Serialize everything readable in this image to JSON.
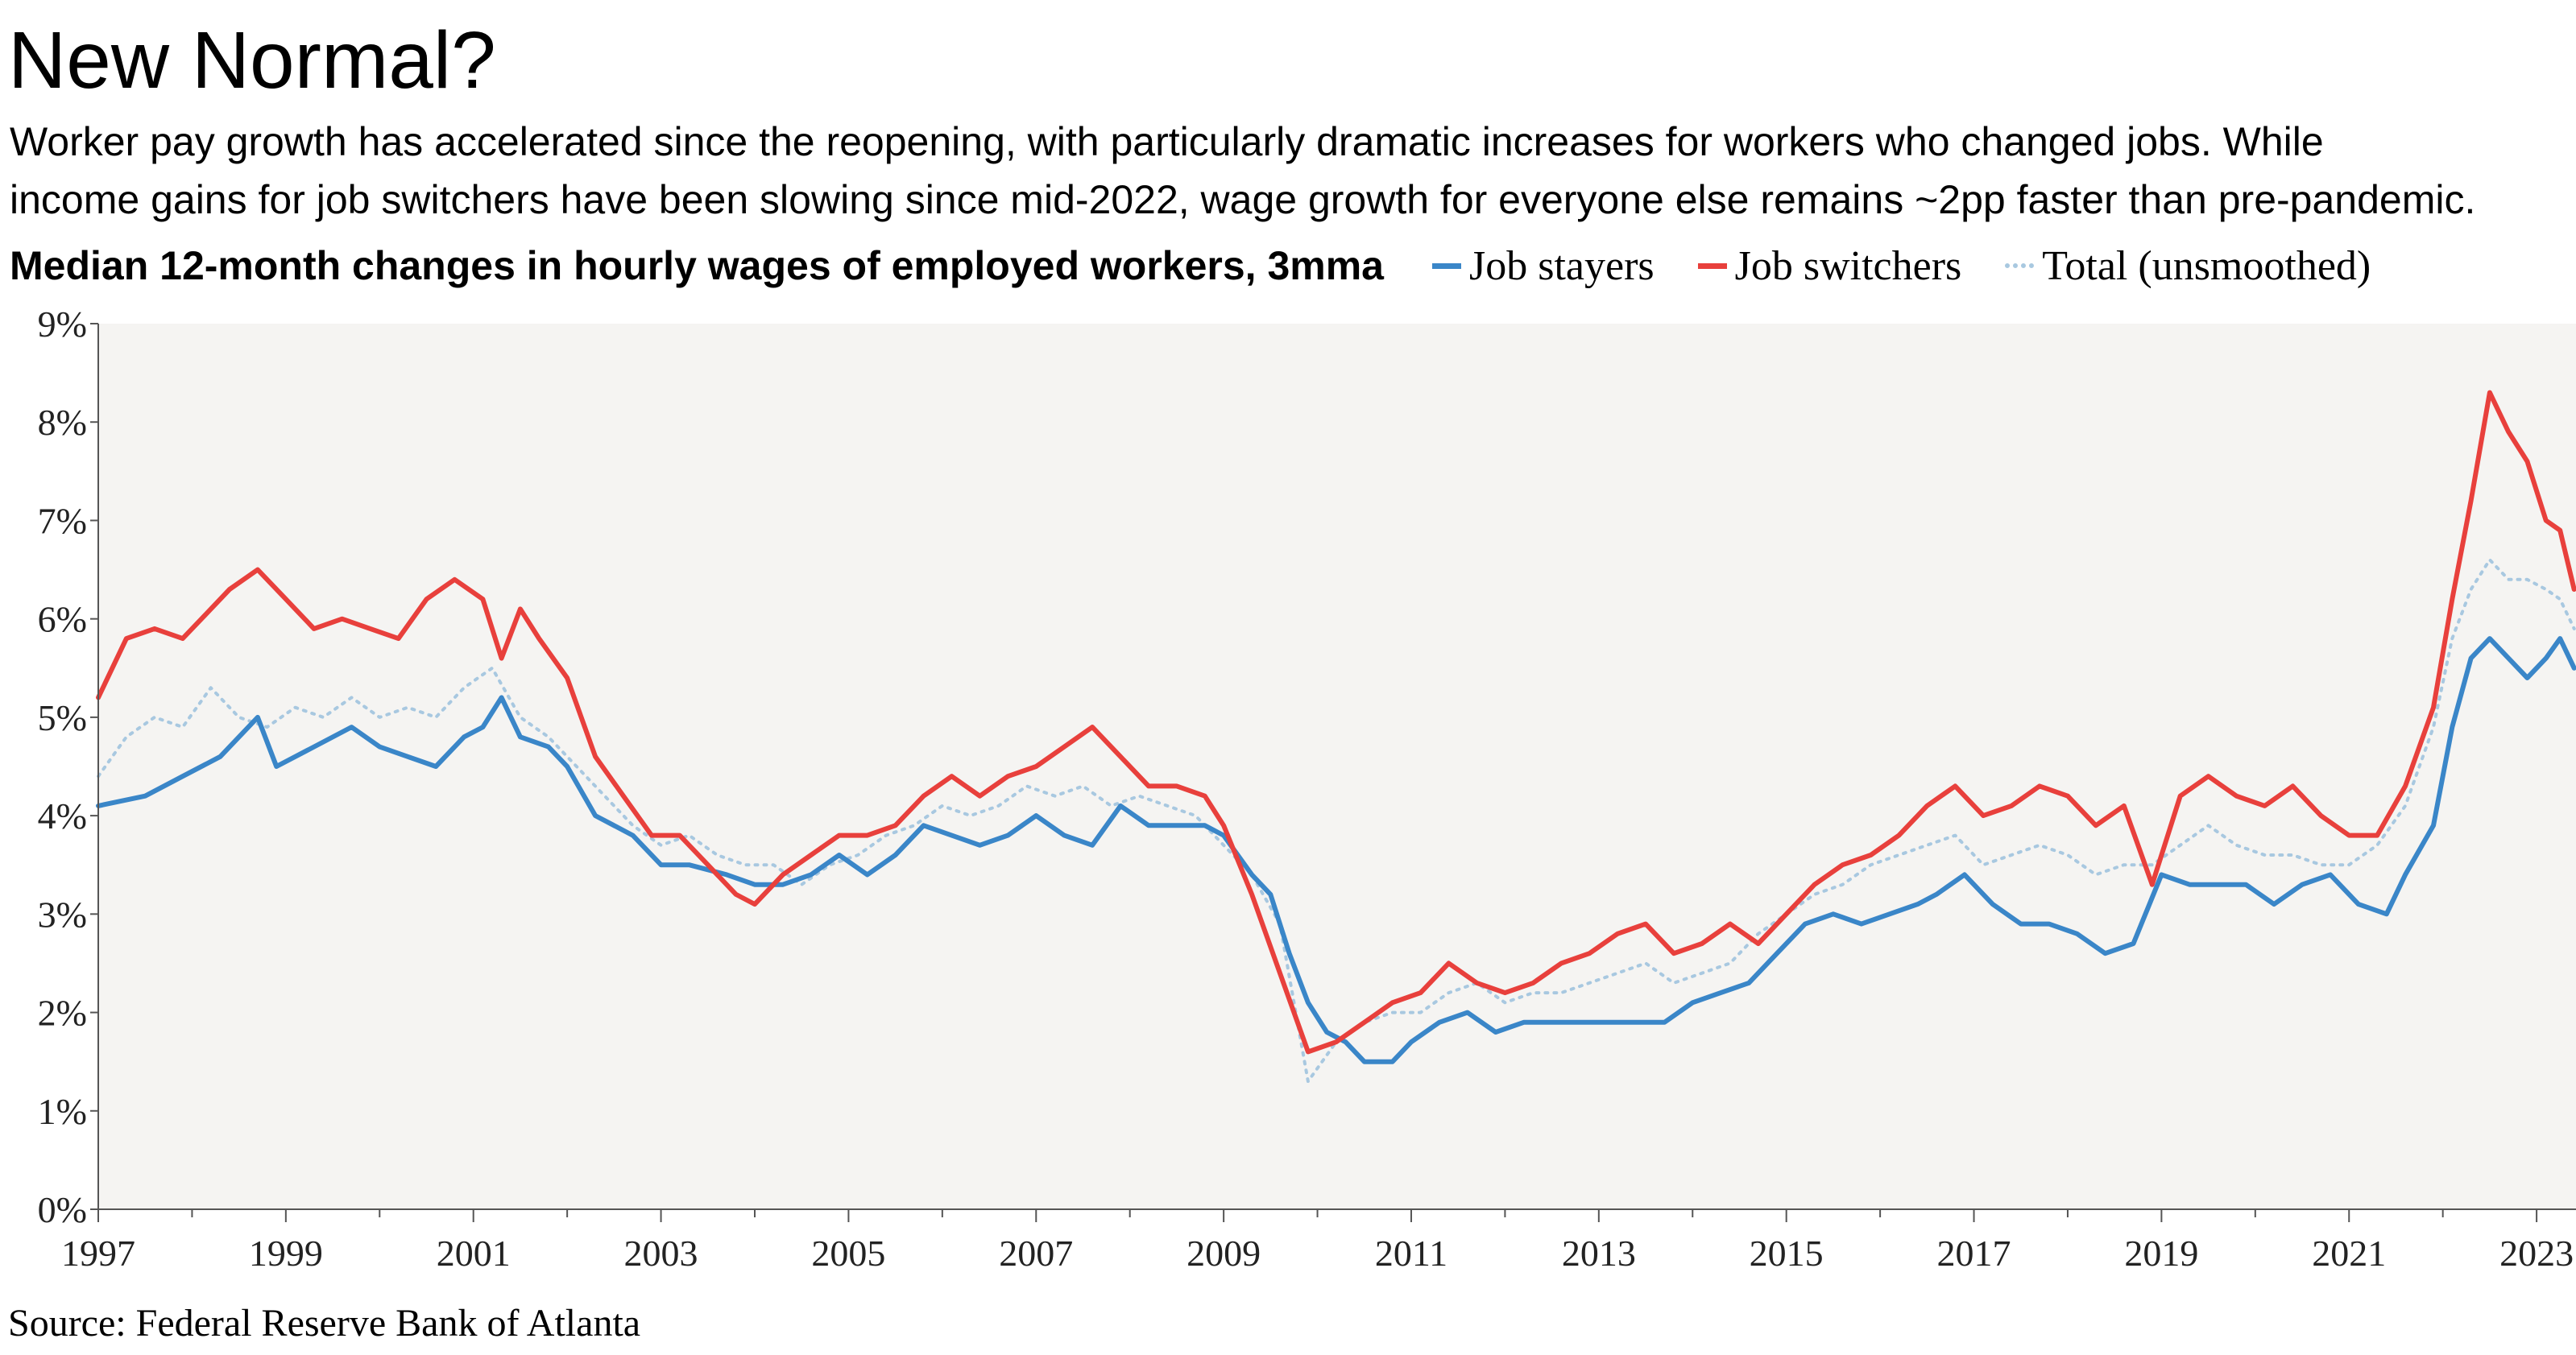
{
  "header": {
    "title": "New Normal?",
    "subtitle_lines": [
      "Worker pay growth has accelerated since the reopening, with particularly dramatic increases for workers who changed jobs. While",
      "income gains for job switchers have been slowing since mid-2022, wage growth for everyone else remains ~2pp faster than pre-pandemic."
    ],
    "measure_label": "Median 12-month changes in hourly wages of employed workers, 3mma"
  },
  "source": "Source: Federal Reserve Bank of Atlanta",
  "colors": {
    "job_stayers": "#3a86c8",
    "job_switchers": "#e8403c",
    "total": "#a8c8e0",
    "plot_background": "#f5f4f2",
    "axis": "#555555"
  },
  "chart_data": {
    "type": "line",
    "title": "New Normal?",
    "xlabel": "",
    "ylabel": "",
    "ylim": [
      0,
      9
    ],
    "xlim": [
      1997,
      2023.42
    ],
    "y_unit": "%",
    "y_ticks": [
      0,
      1,
      2,
      3,
      4,
      5,
      6,
      7,
      8,
      9
    ],
    "y_tick_labels": [
      "0%",
      "1%",
      "2%",
      "3%",
      "4%",
      "5%",
      "6%",
      "7%",
      "8%",
      "9%"
    ],
    "x_ticks": [
      1997,
      1999,
      2001,
      2003,
      2005,
      2007,
      2009,
      2011,
      2013,
      2015,
      2017,
      2019,
      2021,
      2023
    ],
    "x_tick_labels": [
      "1997",
      "1999",
      "2001",
      "2003",
      "2005",
      "2007",
      "2009",
      "2011",
      "2013",
      "2015",
      "2017",
      "2019",
      "2021",
      "2023"
    ],
    "grid": false,
    "legend_position": "top",
    "series": [
      {
        "name": "Job stayers",
        "style": "solid",
        "x": [
          1997.0,
          1997.5,
          1997.9,
          1998.3,
          1998.7,
          1998.9,
          1999.3,
          1999.7,
          2000.0,
          2000.3,
          2000.6,
          2000.9,
          2001.1,
          2001.3,
          2001.5,
          2001.8,
          2002.0,
          2002.3,
          2002.7,
          2003.0,
          2003.3,
          2003.7,
          2004.0,
          2004.3,
          2004.6,
          2004.9,
          2005.2,
          2005.5,
          2005.8,
          2006.1,
          2006.4,
          2006.7,
          2007.0,
          2007.3,
          2007.6,
          2007.9,
          2008.2,
          2008.5,
          2008.8,
          2009.0,
          2009.3,
          2009.5,
          2009.7,
          2009.9,
          2010.1,
          2010.3,
          2010.5,
          2010.8,
          2011.0,
          2011.3,
          2011.6,
          2011.9,
          2012.2,
          2012.5,
          2012.8,
          2013.1,
          2013.4,
          2013.7,
          2014.0,
          2014.3,
          2014.6,
          2014.9,
          2015.2,
          2015.5,
          2015.8,
          2016.1,
          2016.4,
          2016.6,
          2016.9,
          2017.2,
          2017.5,
          2017.8,
          2018.1,
          2018.4,
          2018.7,
          2019.0,
          2019.3,
          2019.6,
          2019.9,
          2020.2,
          2020.5,
          2020.8,
          2021.1,
          2021.4,
          2021.6,
          2021.9,
          2022.1,
          2022.3,
          2022.5,
          2022.7,
          2022.9,
          2023.1,
          2023.25,
          2023.4
        ],
        "y": [
          4.1,
          4.2,
          4.4,
          4.6,
          5.0,
          4.5,
          4.7,
          4.9,
          4.7,
          4.6,
          4.5,
          4.8,
          4.9,
          5.2,
          4.8,
          4.7,
          4.5,
          4.0,
          3.8,
          3.5,
          3.5,
          3.4,
          3.3,
          3.3,
          3.4,
          3.6,
          3.4,
          3.6,
          3.9,
          3.8,
          3.7,
          3.8,
          4.0,
          3.8,
          3.7,
          4.1,
          3.9,
          3.9,
          3.9,
          3.8,
          3.4,
          3.2,
          2.6,
          2.1,
          1.8,
          1.7,
          1.5,
          1.5,
          1.7,
          1.9,
          2.0,
          1.8,
          1.9,
          1.9,
          1.9,
          1.9,
          1.9,
          1.9,
          2.1,
          2.2,
          2.3,
          2.6,
          2.9,
          3.0,
          2.9,
          3.0,
          3.1,
          3.2,
          3.4,
          3.1,
          2.9,
          2.9,
          2.8,
          2.6,
          2.7,
          3.4,
          3.3,
          3.3,
          3.3,
          3.1,
          3.3,
          3.4,
          3.1,
          3.0,
          3.4,
          3.9,
          4.9,
          5.6,
          5.8,
          5.6,
          5.4,
          5.6,
          5.8,
          5.5
        ]
      },
      {
        "name": "Job switchers",
        "style": "solid",
        "x": [
          1997.0,
          1997.3,
          1997.6,
          1997.9,
          1998.1,
          1998.4,
          1998.7,
          1999.0,
          1999.3,
          1999.6,
          1999.9,
          2000.2,
          2000.5,
          2000.8,
          2001.1,
          2001.3,
          2001.5,
          2001.7,
          2002.0,
          2002.3,
          2002.6,
          2002.9,
          2003.2,
          2003.5,
          2003.8,
          2004.0,
          2004.3,
          2004.6,
          2004.9,
          2005.2,
          2005.5,
          2005.8,
          2006.1,
          2006.4,
          2006.7,
          2007.0,
          2007.3,
          2007.6,
          2007.9,
          2008.2,
          2008.5,
          2008.8,
          2009.0,
          2009.3,
          2009.6,
          2009.9,
          2010.2,
          2010.5,
          2010.8,
          2011.1,
          2011.4,
          2011.7,
          2012.0,
          2012.3,
          2012.6,
          2012.9,
          2013.2,
          2013.5,
          2013.8,
          2014.1,
          2014.4,
          2014.7,
          2015.0,
          2015.3,
          2015.6,
          2015.9,
          2016.2,
          2016.5,
          2016.8,
          2017.1,
          2017.4,
          2017.7,
          2018.0,
          2018.3,
          2018.6,
          2018.9,
          2019.2,
          2019.5,
          2019.8,
          2020.1,
          2020.4,
          2020.7,
          2021.0,
          2021.3,
          2021.6,
          2021.9,
          2022.1,
          2022.3,
          2022.5,
          2022.7,
          2022.9,
          2023.1,
          2023.25,
          2023.4
        ],
        "y": [
          5.2,
          5.8,
          5.9,
          5.8,
          6.0,
          6.3,
          6.5,
          6.2,
          5.9,
          6.0,
          5.9,
          5.8,
          6.2,
          6.4,
          6.2,
          5.6,
          6.1,
          5.8,
          5.4,
          4.6,
          4.2,
          3.8,
          3.8,
          3.5,
          3.2,
          3.1,
          3.4,
          3.6,
          3.8,
          3.8,
          3.9,
          4.2,
          4.4,
          4.2,
          4.4,
          4.5,
          4.7,
          4.9,
          4.6,
          4.3,
          4.3,
          4.2,
          3.9,
          3.2,
          2.4,
          1.6,
          1.7,
          1.9,
          2.1,
          2.2,
          2.5,
          2.3,
          2.2,
          2.3,
          2.5,
          2.6,
          2.8,
          2.9,
          2.6,
          2.7,
          2.9,
          2.7,
          3.0,
          3.3,
          3.5,
          3.6,
          3.8,
          4.1,
          4.3,
          4.0,
          4.1,
          4.3,
          4.2,
          3.9,
          4.1,
          3.3,
          4.2,
          4.4,
          4.2,
          4.1,
          4.3,
          4.0,
          3.8,
          3.8,
          4.3,
          5.1,
          6.2,
          7.2,
          8.3,
          7.9,
          7.6,
          7.0,
          6.9,
          6.3
        ]
      },
      {
        "name": "Total (unsmoothed)",
        "style": "dotted",
        "x": [
          1997.0,
          1997.3,
          1997.6,
          1997.9,
          1998.2,
          1998.5,
          1998.8,
          1999.1,
          1999.4,
          1999.7,
          2000.0,
          2000.3,
          2000.6,
          2000.9,
          2001.2,
          2001.5,
          2001.8,
          2002.1,
          2002.4,
          2002.7,
          2003.0,
          2003.3,
          2003.6,
          2003.9,
          2004.2,
          2004.5,
          2004.8,
          2005.1,
          2005.4,
          2005.7,
          2006.0,
          2006.3,
          2006.6,
          2006.9,
          2007.2,
          2007.5,
          2007.8,
          2008.1,
          2008.4,
          2008.7,
          2009.0,
          2009.3,
          2009.6,
          2009.9,
          2010.2,
          2010.5,
          2010.8,
          2011.1,
          2011.4,
          2011.7,
          2012.0,
          2012.3,
          2012.6,
          2012.9,
          2013.2,
          2013.5,
          2013.8,
          2014.1,
          2014.4,
          2014.7,
          2015.0,
          2015.3,
          2015.6,
          2015.9,
          2016.2,
          2016.5,
          2016.8,
          2017.1,
          2017.4,
          2017.7,
          2018.0,
          2018.3,
          2018.6,
          2018.9,
          2019.2,
          2019.5,
          2019.8,
          2020.1,
          2020.4,
          2020.7,
          2021.0,
          2021.3,
          2021.6,
          2021.9,
          2022.1,
          2022.3,
          2022.5,
          2022.7,
          2022.9,
          2023.1,
          2023.25,
          2023.4
        ],
        "y": [
          4.4,
          4.8,
          5.0,
          4.9,
          5.3,
          5.0,
          4.9,
          5.1,
          5.0,
          5.2,
          5.0,
          5.1,
          5.0,
          5.3,
          5.5,
          5.0,
          4.8,
          4.5,
          4.2,
          3.9,
          3.7,
          3.8,
          3.6,
          3.5,
          3.5,
          3.3,
          3.5,
          3.6,
          3.8,
          3.9,
          4.1,
          4.0,
          4.1,
          4.3,
          4.2,
          4.3,
          4.1,
          4.2,
          4.1,
          4.0,
          3.7,
          3.4,
          2.9,
          1.3,
          1.7,
          1.9,
          2.0,
          2.0,
          2.2,
          2.3,
          2.1,
          2.2,
          2.2,
          2.3,
          2.4,
          2.5,
          2.3,
          2.4,
          2.5,
          2.8,
          3.0,
          3.2,
          3.3,
          3.5,
          3.6,
          3.7,
          3.8,
          3.5,
          3.6,
          3.7,
          3.6,
          3.4,
          3.5,
          3.5,
          3.7,
          3.9,
          3.7,
          3.6,
          3.6,
          3.5,
          3.5,
          3.7,
          4.1,
          4.9,
          5.8,
          6.3,
          6.6,
          6.4,
          6.4,
          6.3,
          6.2,
          5.9
        ]
      }
    ]
  }
}
